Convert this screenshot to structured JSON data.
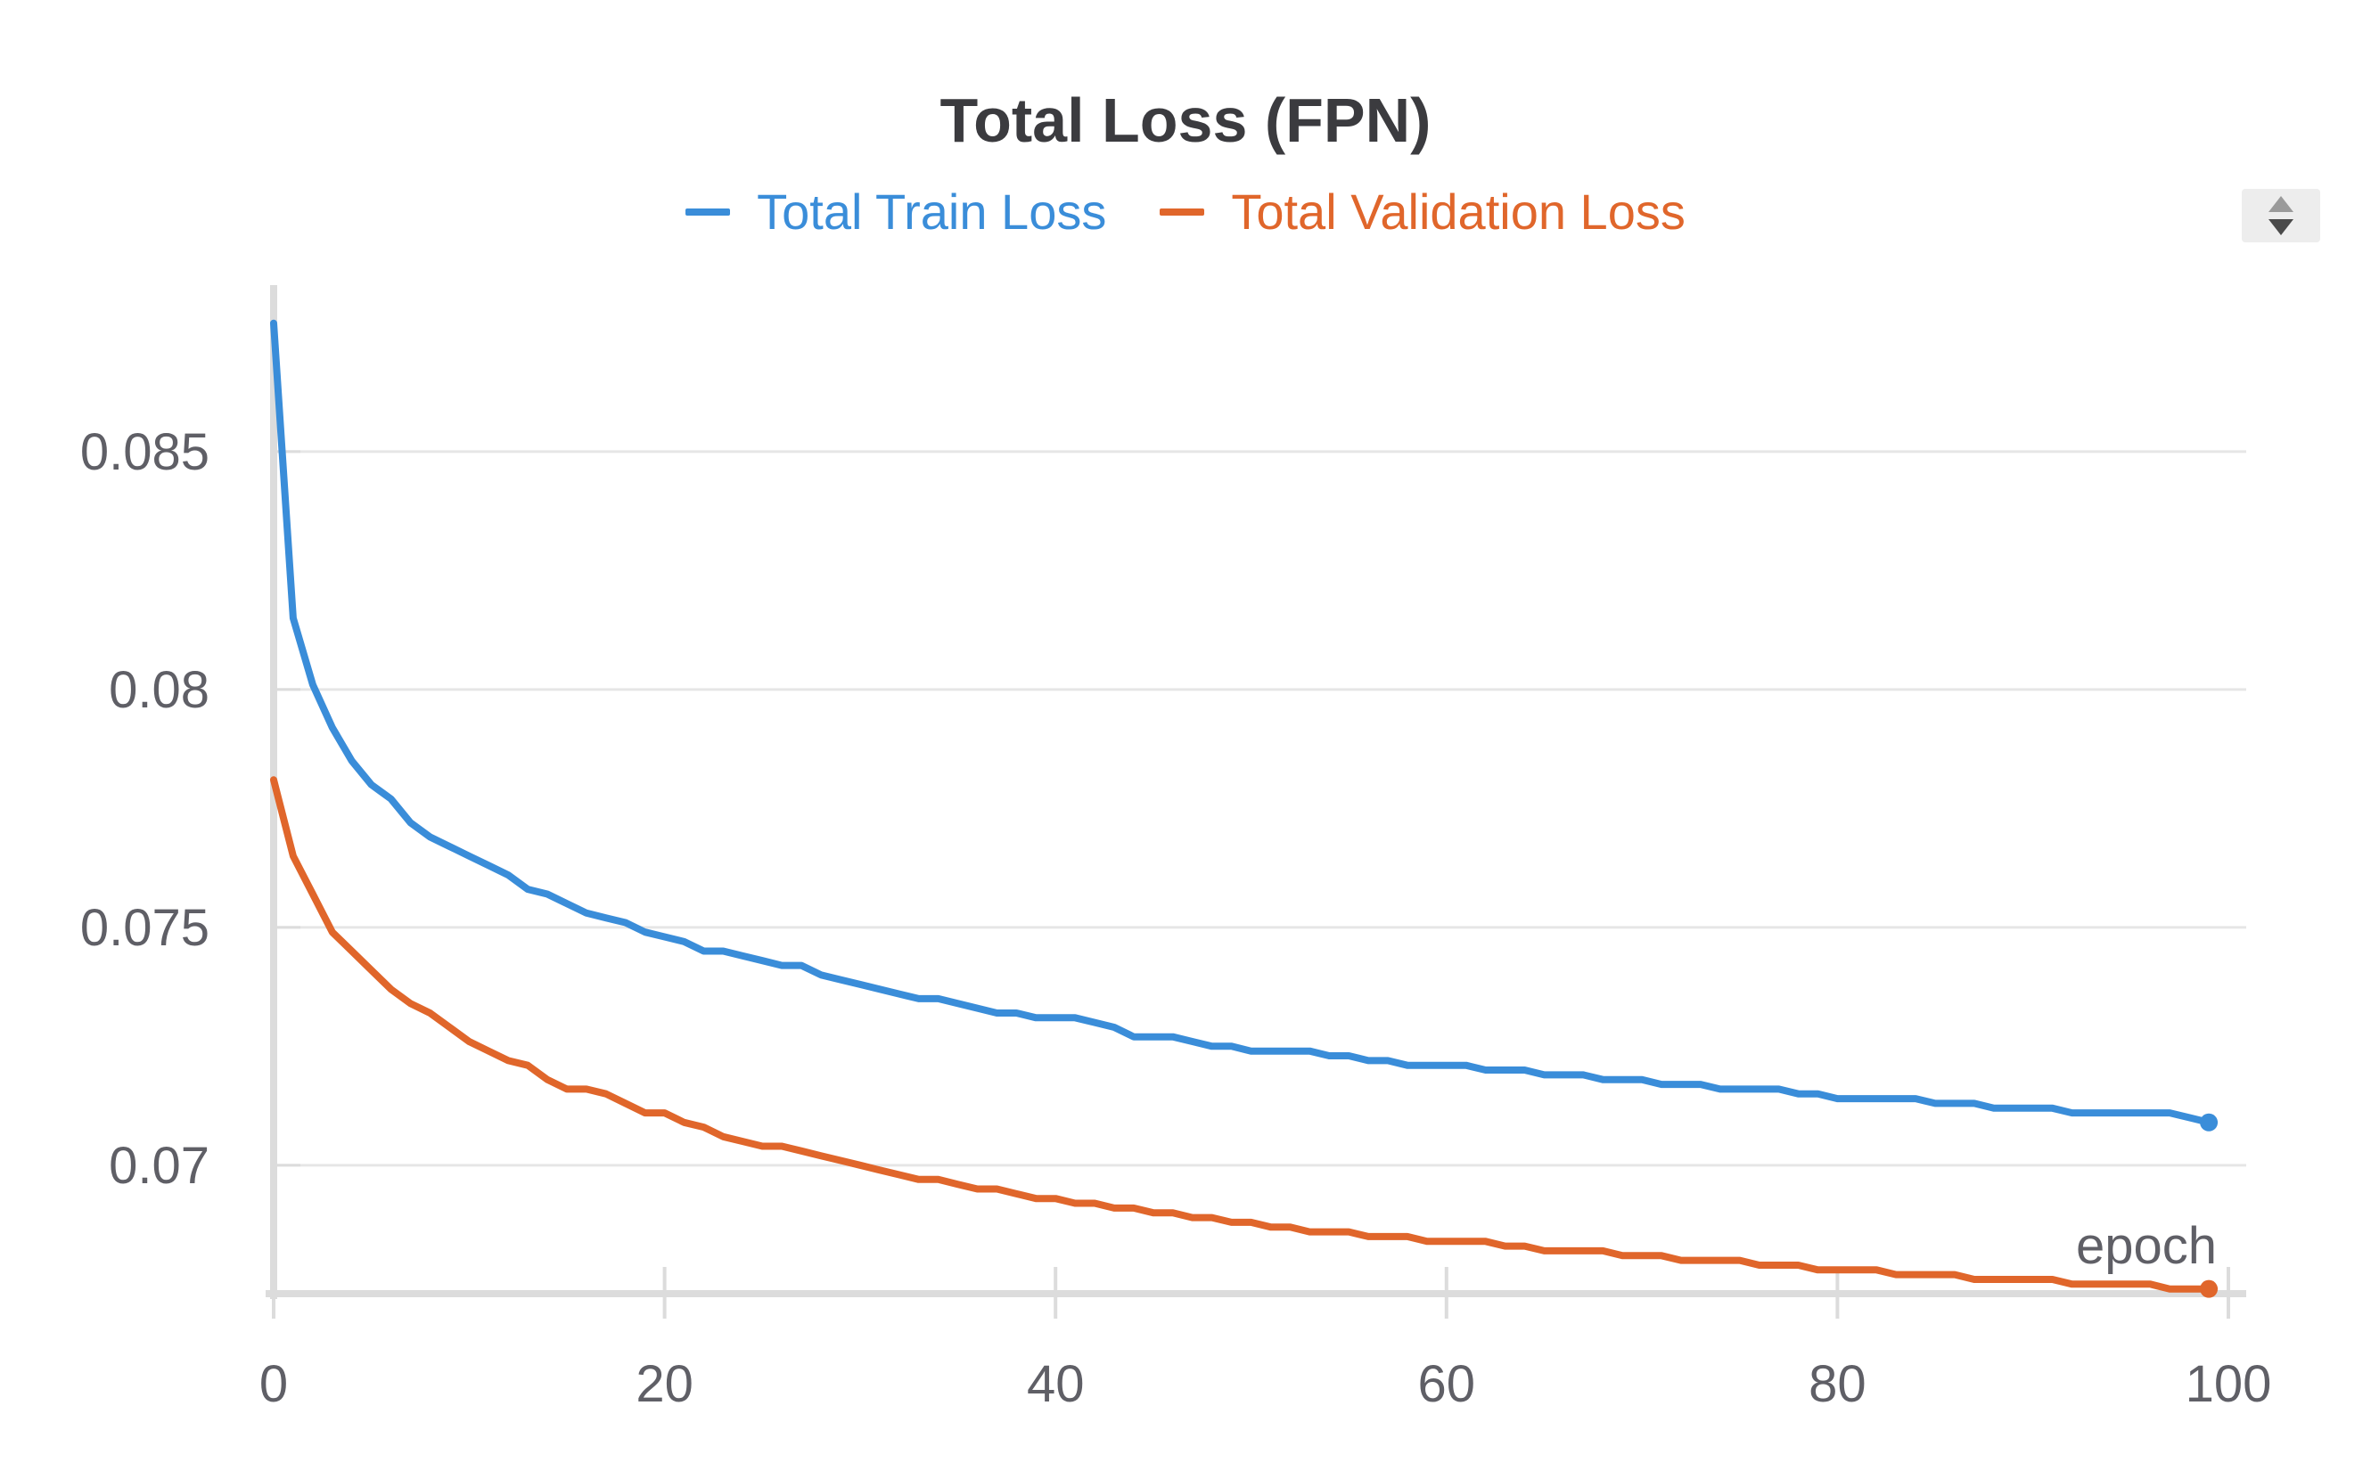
{
  "chart_data": {
    "type": "line",
    "title": "Total Loss (FPN)",
    "xlabel": "epoch",
    "ylabel": "",
    "xlim": [
      0,
      100
    ],
    "ylim": [
      0.0673,
      0.0885
    ],
    "x_ticks": [
      0,
      20,
      40,
      60,
      80,
      100
    ],
    "y_ticks": [
      0.07,
      0.075,
      0.08,
      0.085
    ],
    "x_tick_labels": [
      "0",
      "20",
      "40",
      "60",
      "80",
      "100"
    ],
    "y_tick_labels": [
      "0.07",
      "0.075",
      "0.08",
      "0.085"
    ],
    "grid": true,
    "legend_position": "top-center",
    "series": [
      {
        "name": "Total Train Loss",
        "color": "#3a8dd9",
        "values": [
          0.0877,
          0.0815,
          0.0801,
          0.0792,
          0.0785,
          0.078,
          0.0777,
          0.0772,
          0.0769,
          0.0767,
          0.0765,
          0.0763,
          0.0761,
          0.0758,
          0.0757,
          0.0755,
          0.0753,
          0.0752,
          0.0751,
          0.0749,
          0.0748,
          0.0747,
          0.0745,
          0.0745,
          0.0744,
          0.0743,
          0.0742,
          0.0742,
          0.074,
          0.0739,
          0.0738,
          0.0737,
          0.0736,
          0.0735,
          0.0735,
          0.0734,
          0.0733,
          0.0732,
          0.0732,
          0.0731,
          0.0731,
          0.0731,
          0.073,
          0.0729,
          0.0727,
          0.0727,
          0.0727,
          0.0726,
          0.0725,
          0.0725,
          0.0724,
          0.0724,
          0.0724,
          0.0724,
          0.0723,
          0.0723,
          0.0722,
          0.0722,
          0.0721,
          0.0721,
          0.0721,
          0.0721,
          0.072,
          0.072,
          0.072,
          0.0719,
          0.0719,
          0.0719,
          0.0718,
          0.0718,
          0.0718,
          0.0717,
          0.0717,
          0.0717,
          0.0716,
          0.0716,
          0.0716,
          0.0716,
          0.0715,
          0.0715,
          0.0714,
          0.0714,
          0.0714,
          0.0714,
          0.0714,
          0.0713,
          0.0713,
          0.0713,
          0.0712,
          0.0712,
          0.0712,
          0.0712,
          0.0711,
          0.0711,
          0.0711,
          0.0711,
          0.0711,
          0.0711,
          0.071,
          0.0709
        ]
      },
      {
        "name": "Total Validation Loss",
        "color": "#e0662b",
        "values": [
          0.0781,
          0.0765,
          0.0757,
          0.0749,
          0.0745,
          0.0741,
          0.0737,
          0.0734,
          0.0732,
          0.0729,
          0.0726,
          0.0724,
          0.0722,
          0.0721,
          0.0718,
          0.0716,
          0.0716,
          0.0715,
          0.0713,
          0.0711,
          0.0711,
          0.0709,
          0.0708,
          0.0706,
          0.0705,
          0.0704,
          0.0704,
          0.0703,
          0.0702,
          0.0701,
          0.07,
          0.0699,
          0.0698,
          0.0697,
          0.0697,
          0.0696,
          0.0695,
          0.0695,
          0.0694,
          0.0693,
          0.0693,
          0.0692,
          0.0692,
          0.0691,
          0.0691,
          0.069,
          0.069,
          0.0689,
          0.0689,
          0.0688,
          0.0688,
          0.0687,
          0.0687,
          0.0686,
          0.0686,
          0.0686,
          0.0685,
          0.0685,
          0.0685,
          0.0684,
          0.0684,
          0.0684,
          0.0684,
          0.0683,
          0.0683,
          0.0682,
          0.0682,
          0.0682,
          0.0682,
          0.0681,
          0.0681,
          0.0681,
          0.068,
          0.068,
          0.068,
          0.068,
          0.0679,
          0.0679,
          0.0679,
          0.0678,
          0.0678,
          0.0678,
          0.0678,
          0.0677,
          0.0677,
          0.0677,
          0.0677,
          0.0676,
          0.0676,
          0.0676,
          0.0676,
          0.0676,
          0.0675,
          0.0675,
          0.0675,
          0.0675,
          0.0675,
          0.0674,
          0.0674,
          0.0674
        ]
      }
    ]
  }
}
